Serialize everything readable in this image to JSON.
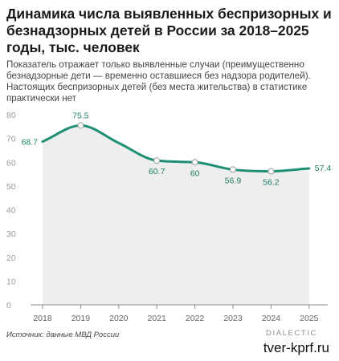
{
  "title": "Динамика числа выявленных беспризорных и безнадзорных детей в России за 2018–2025 годы, тыс. человек",
  "subtitle": "Показатель отражает только выявленные случаи (преимущественно безнадзорные дети — временно оставшиеся без надзора родителей). Настоящих беспризорных детей (без места жительства) в статистике практически нет",
  "source": "Источник: данные МВД России",
  "logo": "DIALECTIC",
  "watermark": "tver-kprf.ru",
  "colors": {
    "line": "#1f8f73",
    "area": "#eeeeee",
    "label": "#1a7d65",
    "axis": "#8a8a8a"
  },
  "chart_data": {
    "type": "line",
    "categories": [
      "2018",
      "2019",
      "2020",
      "2021",
      "2022",
      "2023",
      "2024",
      "2025"
    ],
    "series": [
      {
        "values": [
          68.7,
          75.5,
          null,
          60.7,
          60,
          56.9,
          56.2,
          57.4
        ],
        "labels": [
          "68.7",
          "75.5",
          "",
          "60.7",
          "60",
          "56.9",
          "56.2",
          "57.4"
        ]
      }
    ],
    "yticks": [
      "0",
      "10",
      "20",
      "30",
      "40",
      "50",
      "60",
      "70",
      "80"
    ],
    "ylim": [
      0,
      80
    ],
    "grid": false
  }
}
